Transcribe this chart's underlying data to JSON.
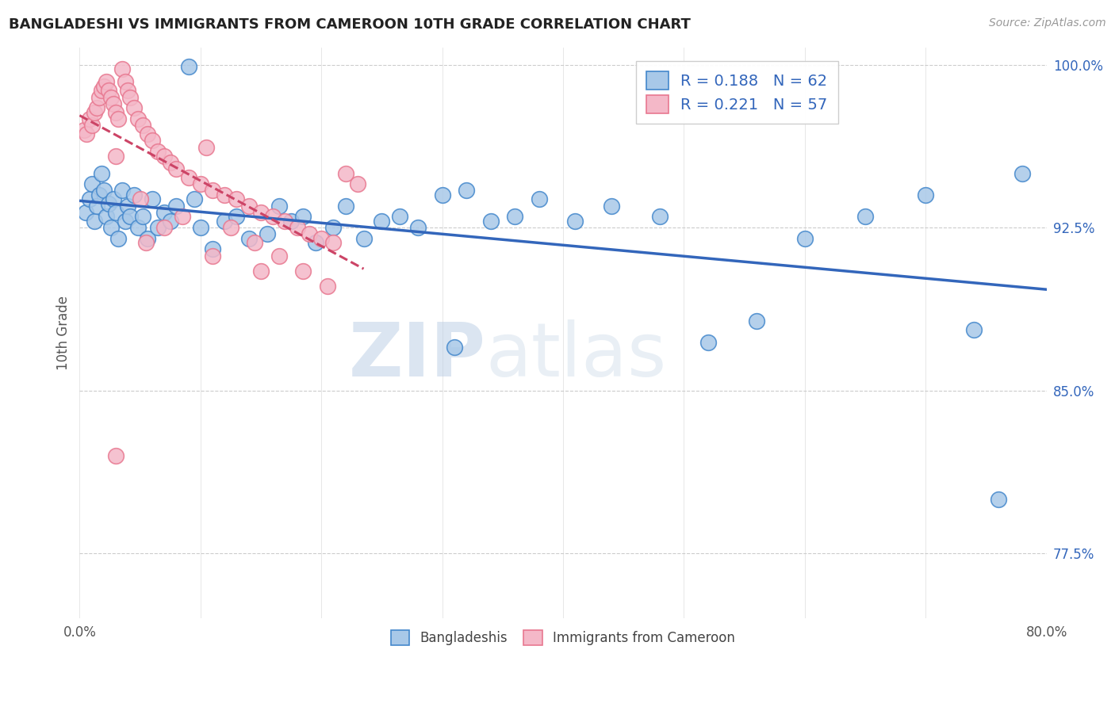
{
  "title": "BANGLADESHI VS IMMIGRANTS FROM CAMEROON 10TH GRADE CORRELATION CHART",
  "source": "Source: ZipAtlas.com",
  "ylabel": "10th Grade",
  "xlim": [
    0.0,
    0.8
  ],
  "ylim": [
    0.745,
    1.008
  ],
  "yticks": [
    0.775,
    0.85,
    0.925,
    1.0
  ],
  "ytick_labels": [
    "77.5%",
    "85.0%",
    "92.5%",
    "100.0%"
  ],
  "xticks": [
    0.0,
    0.1,
    0.2,
    0.3,
    0.4,
    0.5,
    0.6,
    0.7,
    0.8
  ],
  "blue_R": 0.188,
  "blue_N": 62,
  "pink_R": 0.221,
  "pink_N": 57,
  "legend_label_blue": "Bangladeshis",
  "legend_label_pink": "Immigrants from Cameroon",
  "watermark": "ZIPatlas",
  "blue_color": "#a8c8e8",
  "pink_color": "#f4b8c8",
  "blue_edge_color": "#4488cc",
  "pink_edge_color": "#e87890",
  "blue_line_color": "#3366bb",
  "pink_line_color": "#cc4466",
  "grid_color": "#cccccc",
  "bg_color": "#ffffff",
  "blue_scatter_x": [
    0.005,
    0.008,
    0.01,
    0.012,
    0.014,
    0.016,
    0.018,
    0.02,
    0.022,
    0.024,
    0.026,
    0.028,
    0.03,
    0.032,
    0.035,
    0.038,
    0.04,
    0.042,
    0.045,
    0.048,
    0.052,
    0.056,
    0.06,
    0.065,
    0.07,
    0.075,
    0.08,
    0.09,
    0.095,
    0.1,
    0.11,
    0.12,
    0.13,
    0.14,
    0.155,
    0.165,
    0.175,
    0.185,
    0.195,
    0.21,
    0.22,
    0.235,
    0.25,
    0.265,
    0.28,
    0.3,
    0.32,
    0.34,
    0.36,
    0.38,
    0.31,
    0.41,
    0.44,
    0.48,
    0.52,
    0.56,
    0.6,
    0.65,
    0.7,
    0.74,
    0.76,
    0.78
  ],
  "blue_scatter_y": [
    0.932,
    0.938,
    0.945,
    0.928,
    0.935,
    0.94,
    0.95,
    0.942,
    0.93,
    0.936,
    0.925,
    0.938,
    0.932,
    0.92,
    0.942,
    0.928,
    0.935,
    0.93,
    0.94,
    0.925,
    0.93,
    0.92,
    0.938,
    0.925,
    0.932,
    0.928,
    0.935,
    0.999,
    0.938,
    0.925,
    0.915,
    0.928,
    0.93,
    0.92,
    0.922,
    0.935,
    0.928,
    0.93,
    0.918,
    0.925,
    0.935,
    0.92,
    0.928,
    0.93,
    0.925,
    0.94,
    0.942,
    0.928,
    0.93,
    0.938,
    0.87,
    0.928,
    0.935,
    0.93,
    0.872,
    0.882,
    0.92,
    0.93,
    0.94,
    0.878,
    0.8,
    0.95
  ],
  "pink_scatter_x": [
    0.004,
    0.006,
    0.008,
    0.01,
    0.012,
    0.014,
    0.016,
    0.018,
    0.02,
    0.022,
    0.024,
    0.026,
    0.028,
    0.03,
    0.032,
    0.035,
    0.038,
    0.04,
    0.042,
    0.045,
    0.048,
    0.052,
    0.056,
    0.06,
    0.065,
    0.07,
    0.075,
    0.08,
    0.09,
    0.1,
    0.11,
    0.12,
    0.13,
    0.14,
    0.15,
    0.16,
    0.17,
    0.18,
    0.19,
    0.2,
    0.21,
    0.22,
    0.23,
    0.05,
    0.085,
    0.105,
    0.125,
    0.145,
    0.165,
    0.185,
    0.205,
    0.03,
    0.07,
    0.11,
    0.15,
    0.03,
    0.055
  ],
  "pink_scatter_y": [
    0.97,
    0.968,
    0.975,
    0.972,
    0.978,
    0.98,
    0.985,
    0.988,
    0.99,
    0.992,
    0.988,
    0.985,
    0.982,
    0.978,
    0.975,
    0.998,
    0.992,
    0.988,
    0.985,
    0.98,
    0.975,
    0.972,
    0.968,
    0.965,
    0.96,
    0.958,
    0.955,
    0.952,
    0.948,
    0.945,
    0.942,
    0.94,
    0.938,
    0.935,
    0.932,
    0.93,
    0.928,
    0.925,
    0.922,
    0.92,
    0.918,
    0.95,
    0.945,
    0.938,
    0.93,
    0.962,
    0.925,
    0.918,
    0.912,
    0.905,
    0.898,
    0.958,
    0.925,
    0.912,
    0.905,
    0.82,
    0.918
  ]
}
